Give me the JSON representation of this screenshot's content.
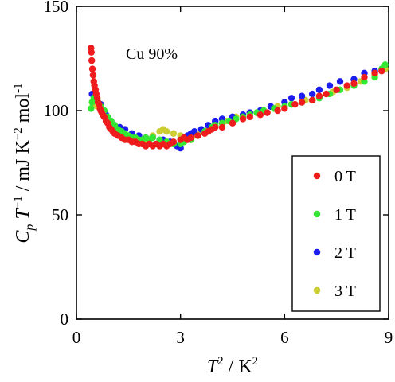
{
  "chart_data": {
    "type": "scatter",
    "title": "",
    "annotation": "Cu 90%",
    "xlabel": {
      "main": "T",
      "sup": "2",
      "unit": " / K",
      "unit_sup": "2"
    },
    "ylabel": {
      "c": "C",
      "sub": "p",
      "t": " T",
      "t_sup": "−1",
      "rest": " / mJ K",
      "k_sup": "−2",
      "mol": " mol",
      "mol_sup": "-1"
    },
    "xlim": [
      0,
      9
    ],
    "ylim": [
      0,
      150
    ],
    "xticks": [
      0,
      3,
      6,
      9
    ],
    "yticks": [
      0,
      50,
      100,
      150
    ],
    "legend_position": "bottom-right",
    "series": [
      {
        "name": "0 T",
        "color": "#ee1c1c",
        "points": [
          [
            0.42,
            130
          ],
          [
            0.43,
            128
          ],
          [
            0.44,
            124
          ],
          [
            0.46,
            120
          ],
          [
            0.48,
            117
          ],
          [
            0.5,
            114
          ],
          [
            0.52,
            112
          ],
          [
            0.55,
            110
          ],
          [
            0.57,
            108
          ],
          [
            0.6,
            106
          ],
          [
            0.62,
            104
          ],
          [
            0.65,
            103
          ],
          [
            0.68,
            101
          ],
          [
            0.7,
            100
          ],
          [
            0.73,
            99
          ],
          [
            0.76,
            98
          ],
          [
            0.8,
            97
          ],
          [
            0.85,
            95
          ],
          [
            0.9,
            94
          ],
          [
            0.95,
            92
          ],
          [
            1.0,
            91
          ],
          [
            1.05,
            90
          ],
          [
            1.1,
            89
          ],
          [
            1.2,
            88
          ],
          [
            1.3,
            87
          ],
          [
            1.4,
            86
          ],
          [
            1.5,
            86
          ],
          [
            1.6,
            85
          ],
          [
            1.7,
            85
          ],
          [
            1.8,
            84
          ],
          [
            1.9,
            84
          ],
          [
            2.0,
            83
          ],
          [
            2.1,
            84
          ],
          [
            2.2,
            83
          ],
          [
            2.3,
            84
          ],
          [
            2.4,
            83
          ],
          [
            2.5,
            84
          ],
          [
            2.6,
            83
          ],
          [
            2.7,
            84
          ],
          [
            2.8,
            85
          ],
          [
            3.0,
            86
          ],
          [
            3.1,
            87
          ],
          [
            3.2,
            86
          ],
          [
            3.3,
            87
          ],
          [
            3.5,
            88
          ],
          [
            3.7,
            89
          ],
          [
            3.8,
            90
          ],
          [
            3.9,
            91
          ],
          [
            4.0,
            92
          ],
          [
            4.2,
            92
          ],
          [
            4.5,
            94
          ],
          [
            4.8,
            96
          ],
          [
            5.0,
            97
          ],
          [
            5.3,
            98
          ],
          [
            5.5,
            99
          ],
          [
            5.8,
            100
          ],
          [
            6.0,
            101
          ],
          [
            6.3,
            103
          ],
          [
            6.5,
            104
          ],
          [
            6.8,
            105
          ],
          [
            7.0,
            107
          ],
          [
            7.2,
            108
          ],
          [
            7.5,
            110
          ],
          [
            7.8,
            112
          ],
          [
            8.0,
            113
          ],
          [
            8.3,
            116
          ],
          [
            8.6,
            118
          ],
          [
            8.8,
            119
          ]
        ]
      },
      {
        "name": "1 T",
        "color": "#33e833",
        "points": [
          [
            0.42,
            101
          ],
          [
            0.45,
            104
          ],
          [
            0.5,
            106
          ],
          [
            0.55,
            107
          ],
          [
            0.6,
            105
          ],
          [
            0.7,
            102
          ],
          [
            0.8,
            100
          ],
          [
            0.9,
            97
          ],
          [
            1.0,
            95
          ],
          [
            1.1,
            93
          ],
          [
            1.2,
            91
          ],
          [
            1.3,
            90
          ],
          [
            1.4,
            89
          ],
          [
            1.5,
            88
          ],
          [
            1.6,
            87
          ],
          [
            1.7,
            87
          ],
          [
            1.8,
            86
          ],
          [
            1.9,
            86
          ],
          [
            2.0,
            87
          ],
          [
            2.1,
            86
          ],
          [
            2.2,
            87
          ],
          [
            2.4,
            86
          ],
          [
            2.6,
            85
          ],
          [
            2.8,
            84
          ],
          [
            3.0,
            84
          ],
          [
            3.1,
            85
          ],
          [
            3.3,
            86
          ],
          [
            3.5,
            88
          ],
          [
            3.7,
            90
          ],
          [
            3.9,
            92
          ],
          [
            4.0,
            93
          ],
          [
            4.2,
            94
          ],
          [
            4.4,
            95
          ],
          [
            4.6,
            96
          ],
          [
            4.8,
            97
          ],
          [
            5.0,
            98
          ],
          [
            5.2,
            99
          ],
          [
            5.4,
            100
          ],
          [
            5.7,
            101
          ],
          [
            6.0,
            102
          ],
          [
            6.2,
            103
          ],
          [
            6.5,
            104
          ],
          [
            6.8,
            105
          ],
          [
            7.0,
            106
          ],
          [
            7.3,
            108
          ],
          [
            7.6,
            110
          ],
          [
            8.0,
            112
          ],
          [
            8.3,
            114
          ],
          [
            8.6,
            116
          ],
          [
            8.8,
            120
          ],
          [
            8.9,
            122
          ]
        ]
      },
      {
        "name": "2 T",
        "color": "#1c1cee",
        "points": [
          [
            0.45,
            108
          ],
          [
            0.55,
            107
          ],
          [
            0.7,
            103
          ],
          [
            0.85,
            98
          ],
          [
            1.0,
            95
          ],
          [
            1.1,
            93
          ],
          [
            1.25,
            92
          ],
          [
            1.4,
            91
          ],
          [
            1.6,
            89
          ],
          [
            1.8,
            88
          ],
          [
            2.0,
            87
          ],
          [
            2.2,
            87
          ],
          [
            2.5,
            86
          ],
          [
            2.7,
            85
          ],
          [
            2.9,
            83
          ],
          [
            3.0,
            82
          ],
          [
            3.1,
            86
          ],
          [
            3.2,
            88
          ],
          [
            3.3,
            89
          ],
          [
            3.4,
            90
          ],
          [
            3.6,
            91
          ],
          [
            3.8,
            93
          ],
          [
            4.0,
            95
          ],
          [
            4.2,
            96
          ],
          [
            4.5,
            97
          ],
          [
            4.8,
            98
          ],
          [
            5.0,
            99
          ],
          [
            5.3,
            100
          ],
          [
            5.6,
            102
          ],
          [
            6.0,
            104
          ],
          [
            6.2,
            106
          ],
          [
            6.5,
            107
          ],
          [
            6.8,
            108
          ],
          [
            7.0,
            110
          ],
          [
            7.3,
            112
          ],
          [
            7.6,
            114
          ],
          [
            8.0,
            115
          ],
          [
            8.3,
            118
          ],
          [
            8.6,
            119
          ]
        ]
      },
      {
        "name": "3 T",
        "color": "#cccc33",
        "points": [
          [
            0.5,
            103
          ],
          [
            0.6,
            102
          ],
          [
            0.8,
            98
          ],
          [
            1.0,
            94
          ],
          [
            1.2,
            90
          ],
          [
            1.4,
            88
          ],
          [
            1.6,
            87
          ],
          [
            1.8,
            87
          ],
          [
            2.0,
            86
          ],
          [
            2.2,
            88
          ],
          [
            2.4,
            90
          ],
          [
            2.5,
            91
          ],
          [
            2.6,
            90
          ],
          [
            2.8,
            89
          ],
          [
            3.0,
            88
          ],
          [
            3.2,
            87
          ],
          [
            3.4,
            88
          ],
          [
            3.6,
            90
          ],
          [
            3.8,
            92
          ],
          [
            4.0,
            94
          ],
          [
            4.3,
            95
          ],
          [
            4.6,
            97
          ],
          [
            5.0,
            99
          ],
          [
            5.4,
            100
          ],
          [
            5.8,
            102
          ],
          [
            6.2,
            103
          ],
          [
            6.6,
            105
          ],
          [
            7.0,
            107
          ],
          [
            7.4,
            109
          ],
          [
            7.8,
            111
          ],
          [
            8.2,
            114
          ],
          [
            8.6,
            117
          ],
          [
            8.9,
            120
          ]
        ]
      }
    ]
  }
}
